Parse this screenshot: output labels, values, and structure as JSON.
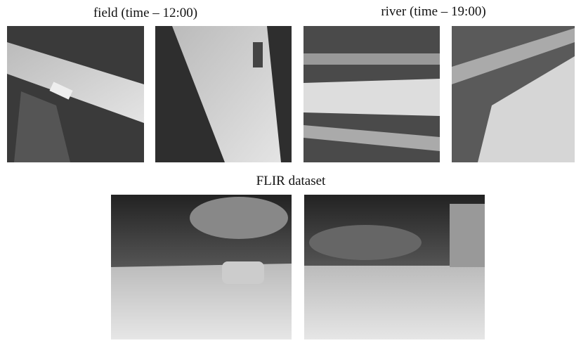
{
  "figure": {
    "groups": [
      {
        "label": "field (time – 12:00)"
      },
      {
        "label": "river (time – 19:00)"
      },
      {
        "label": "FLIR dataset"
      }
    ]
  }
}
